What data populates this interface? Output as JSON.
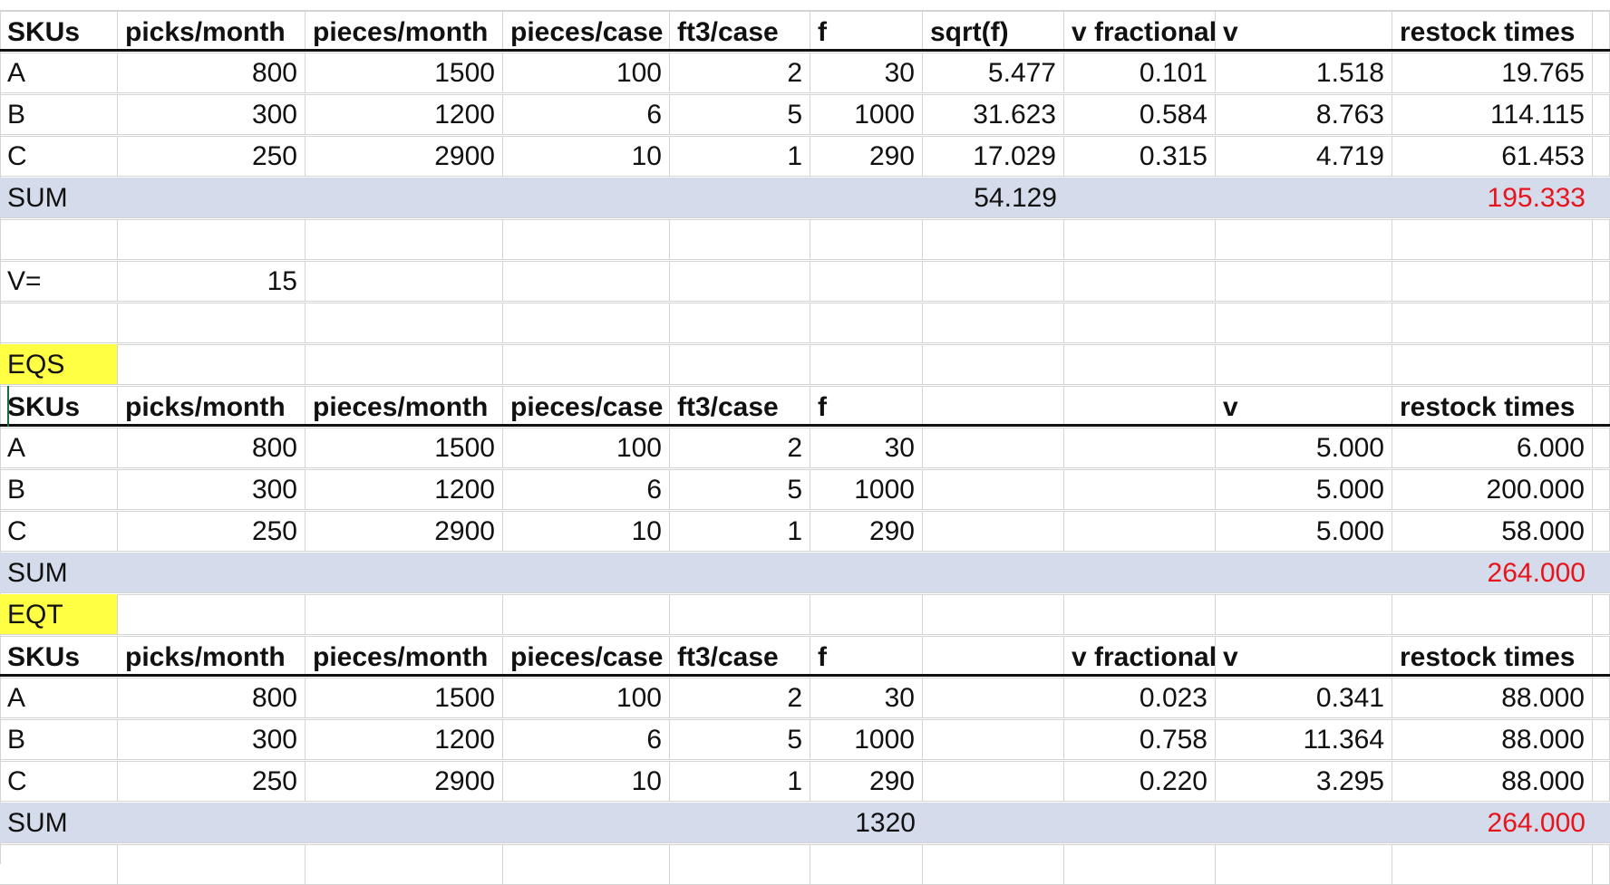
{
  "sheet": {
    "table1": {
      "headers": [
        "SKUs",
        "picks/month",
        "pieces/month",
        "pieces/case",
        "ft3/case",
        "f",
        "sqrt(f)",
        "v fractional",
        "v",
        "restock times"
      ],
      "rows": [
        [
          "A",
          "800",
          "1500",
          "100",
          "2",
          "30",
          "5.477",
          "0.101",
          "1.518",
          "19.765"
        ],
        [
          "B",
          "300",
          "1200",
          "6",
          "5",
          "1000",
          "31.623",
          "0.584",
          "8.763",
          "114.115"
        ],
        [
          "C",
          "250",
          "2900",
          "10",
          "1",
          "290",
          "17.029",
          "0.315",
          "4.719",
          "61.453"
        ]
      ],
      "sum_label": "SUM",
      "sum_sqrt": "54.129",
      "sum_restock": "195.333"
    },
    "v_label": "V=",
    "v_value": "15",
    "eqs": {
      "label": "EQS",
      "headers": [
        "SKUs",
        "picks/month",
        "pieces/month",
        "pieces/case",
        "ft3/case",
        "f",
        "",
        "",
        "v",
        "restock times"
      ],
      "rows": [
        [
          "A",
          "800",
          "1500",
          "100",
          "2",
          "30",
          "",
          "",
          "5.000",
          "6.000"
        ],
        [
          "B",
          "300",
          "1200",
          "6",
          "5",
          "1000",
          "",
          "",
          "5.000",
          "200.000"
        ],
        [
          "C",
          "250",
          "2900",
          "10",
          "1",
          "290",
          "",
          "",
          "5.000",
          "58.000"
        ]
      ],
      "sum_label": "SUM",
      "sum_restock": "264.000"
    },
    "eqt": {
      "label": "EQT",
      "headers": [
        "SKUs",
        "picks/month",
        "pieces/month",
        "pieces/case",
        "ft3/case",
        "f",
        "",
        "v fractional",
        "v",
        "restock times"
      ],
      "rows": [
        [
          "A",
          "800",
          "1500",
          "100",
          "2",
          "30",
          "",
          "0.023",
          "0.341",
          "88.000"
        ],
        [
          "B",
          "300",
          "1200",
          "6",
          "5",
          "1000",
          "",
          "0.758",
          "11.364",
          "88.000"
        ],
        [
          "C",
          "250",
          "2900",
          "10",
          "1",
          "290",
          "",
          "0.220",
          "3.295",
          "88.000"
        ]
      ],
      "sum_label": "SUM",
      "sum_f": "1320",
      "sum_restock": "264.000"
    },
    "colors": {
      "sum_bar": "#d4dcec",
      "label_highlight": "#ffff44",
      "sum_value": "#e8141c",
      "grid": "#d4d4d4"
    }
  }
}
